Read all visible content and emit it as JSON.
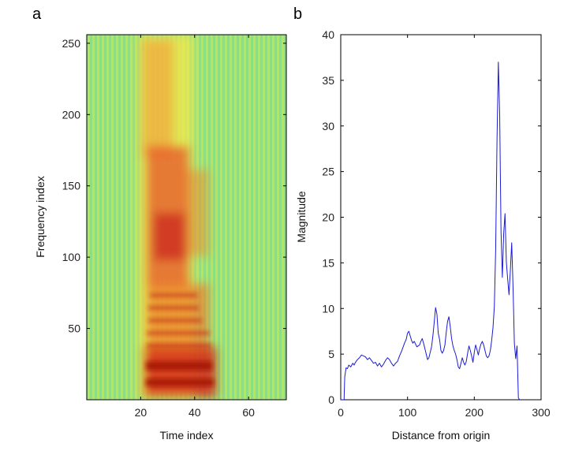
{
  "chart_data": [
    {
      "type": "heatmap",
      "panel_label": "a",
      "xlabel": "Time index",
      "ylabel": "Frequency index",
      "xlim": [
        0,
        74
      ],
      "ylim": [
        0,
        256
      ],
      "xticks": [
        "20",
        "40",
        "60"
      ],
      "yticks": [
        "50",
        "100",
        "150",
        "200",
        "250"
      ],
      "colormap": "jet",
      "grid": false
    },
    {
      "type": "line",
      "panel_label": "b",
      "xlabel": "Distance from origin",
      "ylabel": "Magnitude",
      "xlim": [
        0,
        300
      ],
      "ylim": [
        0,
        40
      ],
      "xticks": [
        "0",
        "100",
        "200",
        "300"
      ],
      "yticks": [
        "0",
        "5",
        "10",
        "15",
        "20",
        "25",
        "30",
        "35",
        "40"
      ],
      "grid": false,
      "color": "#1a1ad6",
      "series": [
        {
          "x": [
            0,
            3,
            5,
            6,
            8,
            10,
            12,
            15,
            18,
            20,
            22,
            25,
            28,
            31,
            34,
            37,
            40,
            43,
            46,
            49,
            52,
            55,
            58,
            61,
            64,
            67,
            70,
            73,
            76,
            79,
            82,
            85,
            88,
            91,
            94,
            96,
            98,
            100,
            102,
            104,
            106,
            108,
            110,
            112,
            114,
            116,
            118,
            120,
            122,
            124,
            126,
            128,
            130,
            132,
            134,
            136,
            138,
            140,
            142,
            144,
            146,
            148,
            150,
            152,
            154,
            156,
            158,
            160,
            162,
            164,
            166,
            168,
            170,
            172,
            174,
            176,
            178,
            180,
            182,
            184,
            186,
            188,
            190,
            192,
            194,
            196,
            198,
            200,
            202,
            204,
            206,
            208,
            210,
            212,
            214,
            216,
            218,
            220,
            222,
            224,
            226,
            228,
            230,
            232,
            234,
            236,
            238,
            240,
            242,
            244,
            246,
            248,
            250,
            252,
            254,
            256,
            258,
            260,
            262,
            264,
            266,
            268
          ],
          "y": [
            0,
            0,
            0,
            2.5,
            3.5,
            3.4,
            3.8,
            3.6,
            4.0,
            3.8,
            4.1,
            4.4,
            4.6,
            4.9,
            4.8,
            4.7,
            4.4,
            4.6,
            4.3,
            4.0,
            4.1,
            3.7,
            4.0,
            3.6,
            3.9,
            4.3,
            4.6,
            4.4,
            4.0,
            3.7,
            4.0,
            4.2,
            4.8,
            5.3,
            5.9,
            6.3,
            6.6,
            7.3,
            7.5,
            7.0,
            6.5,
            6.2,
            6.4,
            6.1,
            5.8,
            5.9,
            6.0,
            6.4,
            6.7,
            6.2,
            5.6,
            5.0,
            4.4,
            4.6,
            5.2,
            5.8,
            7.0,
            8.5,
            10.1,
            9.4,
            7.3,
            6.6,
            5.4,
            5.1,
            5.4,
            6.0,
            7.4,
            8.6,
            9.1,
            8.0,
            6.7,
            5.9,
            5.4,
            5.0,
            4.4,
            3.6,
            3.4,
            4.0,
            4.6,
            4.1,
            3.8,
            4.2,
            5.1,
            5.9,
            5.4,
            4.8,
            4.1,
            5.2,
            6.0,
            5.5,
            4.9,
            5.6,
            6.1,
            6.4,
            6.0,
            5.4,
            4.8,
            4.6,
            4.8,
            5.4,
            6.5,
            7.9,
            10.2,
            16.5,
            28.4,
            37.0,
            31.2,
            18.5,
            13.4,
            18.2,
            20.4,
            15.1,
            13.2,
            11.5,
            14.2,
            17.2,
            12.4,
            6.2,
            4.5,
            5.9,
            0.2,
            0
          ]
        }
      ]
    }
  ]
}
